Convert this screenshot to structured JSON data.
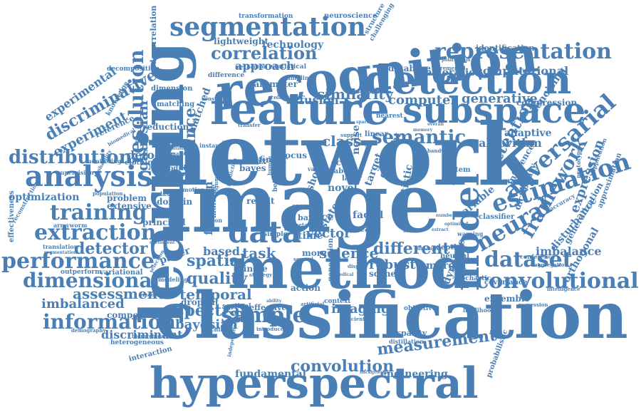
{
  "color": "#4a7fb5",
  "words": [
    {
      "id": "network",
      "text": "network"
    },
    {
      "id": "image",
      "text": "image"
    },
    {
      "id": "classification",
      "text": "classification"
    },
    {
      "id": "learning",
      "text": "learning"
    },
    {
      "id": "recognition",
      "text": "recognition"
    },
    {
      "id": "method",
      "text": "method"
    },
    {
      "id": "feature",
      "text": "feature"
    },
    {
      "id": "hyperspectral",
      "text": "hyperspectral"
    },
    {
      "id": "detection",
      "text": "detection"
    },
    {
      "id": "subspace",
      "text": "subspace"
    },
    {
      "id": "segmentation",
      "text": "segmentation"
    },
    {
      "id": "model",
      "text": "model"
    },
    {
      "id": "analysis",
      "text": "analysis"
    },
    {
      "id": "estimation",
      "text": "estimation"
    },
    {
      "id": "convolutional",
      "text": "convolutional"
    },
    {
      "id": "representation",
      "text": "representation"
    },
    {
      "id": "data",
      "text": "data"
    },
    {
      "id": "sample",
      "text": "sample"
    },
    {
      "id": "dataset",
      "text": "dataset"
    },
    {
      "id": "neural",
      "text": "neural"
    },
    {
      "id": "adversarial",
      "text": "adversarial"
    },
    {
      "id": "extraction",
      "text": "extraction"
    },
    {
      "id": "training",
      "text": "training"
    },
    {
      "id": "performance",
      "text": "performance"
    },
    {
      "id": "dimensional",
      "text": "dimensional"
    },
    {
      "id": "information",
      "text": "information"
    },
    {
      "id": "distribution",
      "text": "distribution"
    },
    {
      "id": "resolution",
      "text": "resolution"
    },
    {
      "id": "correlation",
      "text": "correlation"
    },
    {
      "id": "semantic",
      "text": "semantic"
    },
    {
      "id": "framework",
      "text": "framework"
    },
    {
      "id": "convolution",
      "text": "convolution"
    },
    {
      "id": "measurement",
      "text": "measurement"
    },
    {
      "id": "spectral",
      "text": "spectral"
    },
    {
      "id": "spatial",
      "text": "spatial"
    },
    {
      "id": "quality",
      "text": "quality"
    },
    {
      "id": "distance",
      "text": "distance"
    },
    {
      "id": "discriminative",
      "text": "discriminative"
    },
    {
      "id": "experimental",
      "text": "experimental"
    },
    {
      "id": "experiment",
      "text": "experiment"
    },
    {
      "id": "detector",
      "text": "detector"
    },
    {
      "id": "assessment",
      "text": "assessment"
    },
    {
      "id": "imbalanced",
      "text": "imbalanced"
    },
    {
      "id": "discriminant",
      "text": "discriminant"
    },
    {
      "id": "bayesian",
      "text": "bayesian"
    },
    {
      "id": "temporal",
      "text": "temporal"
    },
    {
      "id": "science",
      "text": "science"
    },
    {
      "id": "different",
      "text": "different"
    },
    {
      "id": "imaging",
      "text": "imaging"
    },
    {
      "id": "based",
      "text": "based"
    },
    {
      "id": "task",
      "text": "task"
    },
    {
      "id": "similarity",
      "text": "similarity"
    },
    {
      "id": "computer",
      "text": "computer"
    },
    {
      "id": "generative",
      "text": "generative"
    },
    {
      "id": "class",
      "text": "class"
    },
    {
      "id": "attention",
      "text": "attention"
    },
    {
      "id": "algorithm",
      "text": "algorithm"
    },
    {
      "id": "imbalance",
      "text": "imbalance"
    },
    {
      "id": "expression",
      "text": "expression"
    },
    {
      "id": "technology",
      "text": "technology"
    },
    {
      "id": "approach",
      "text": "approach"
    },
    {
      "id": "computational",
      "text": "computational"
    },
    {
      "id": "optimization",
      "text": "optimization"
    },
    {
      "id": "gaussian",
      "text": "gaussian"
    },
    {
      "id": "vector",
      "text": "vector"
    },
    {
      "id": "robust",
      "text": "robust"
    },
    {
      "id": "fusion",
      "text": "fusion"
    },
    {
      "id": "function",
      "text": "function"
    },
    {
      "id": "database",
      "text": "database"
    },
    {
      "id": "restoration",
      "text": "restoration"
    },
    {
      "id": "denoising",
      "text": "denoising"
    },
    {
      "id": "compression",
      "text": "compression"
    },
    {
      "id": "parameter",
      "text": "parameter"
    },
    {
      "id": "adaptive",
      "text": "adaptive"
    },
    {
      "id": "fundamental",
      "text": "fundamental"
    },
    {
      "id": "engineering",
      "text": "engineering"
    },
    {
      "id": "lightweight",
      "text": "lightweight"
    },
    {
      "id": "neuroscience",
      "text": "neuroscience"
    },
    {
      "id": "transformation",
      "text": "transformation"
    },
    {
      "id": "identification",
      "text": "identification"
    },
    {
      "id": "structure",
      "text": "structure"
    },
    {
      "id": "challenging",
      "text": "challenging"
    },
    {
      "id": "statistical",
      "text": "statistical"
    },
    {
      "id": "sampling",
      "text": "sampling"
    },
    {
      "id": "difference",
      "text": "difference"
    },
    {
      "id": "matched",
      "text": "matched"
    },
    {
      "id": "dimension",
      "text": "dimension"
    },
    {
      "id": "matching",
      "text": "matching"
    },
    {
      "id": "reduction",
      "text": "reduction"
    },
    {
      "id": "defocus",
      "text": "defocus"
    },
    {
      "id": "clothing",
      "text": "clothing"
    },
    {
      "id": "module",
      "text": "module"
    },
    {
      "id": "reference",
      "text": "reference"
    },
    {
      "id": "knowledge",
      "text": "knowledge"
    },
    {
      "id": "decomposition",
      "text": "decomposition"
    },
    {
      "id": "decorrelation",
      "text": "decorrelation"
    },
    {
      "id": "problem",
      "text": "problem"
    },
    {
      "id": "extensive",
      "text": "extensive"
    },
    {
      "id": "principal",
      "text": "principal"
    },
    {
      "id": "domain",
      "text": "domain"
    },
    {
      "id": "region",
      "text": "region"
    },
    {
      "id": "paper",
      "text": "paper"
    },
    {
      "id": "modeling",
      "text": "modeling"
    },
    {
      "id": "dropout",
      "text": "dropout"
    },
    {
      "id": "sentinel",
      "text": "sentinel"
    },
    {
      "id": "effective",
      "text": "effective"
    },
    {
      "id": "machine",
      "text": "machine"
    },
    {
      "id": "component",
      "text": "component"
    },
    {
      "id": "heterogeneous",
      "text": "heterogeneous"
    },
    {
      "id": "interaction",
      "text": "interaction"
    },
    {
      "id": "variational",
      "text": "variational"
    },
    {
      "id": "outperform",
      "text": "outperform"
    },
    {
      "id": "modelling",
      "text": "modelling"
    },
    {
      "id": "demography",
      "text": "demography"
    },
    {
      "id": "hierarchical",
      "text": "hierarchical"
    },
    {
      "id": "armyworm",
      "text": "armyworm"
    },
    {
      "id": "translation",
      "text": "translation"
    },
    {
      "id": "segmentation2",
      "text": "segmentation"
    },
    {
      "id": "effectiveness",
      "text": "effectiveness"
    },
    {
      "id": "reconstruction",
      "text": "reconstruction"
    },
    {
      "id": "population",
      "text": "population"
    },
    {
      "id": "supervision",
      "text": "supervision"
    },
    {
      "id": "monitoring",
      "text": "monitoring"
    },
    {
      "id": "biomedical",
      "text": "biomedical"
    },
    {
      "id": "geometric",
      "text": "geometric"
    },
    {
      "id": "automatic",
      "text": "automatic"
    },
    {
      "id": "evolution",
      "text": "evolution"
    },
    {
      "id": "motion",
      "text": "motion"
    },
    {
      "id": "classes",
      "text": "classes"
    },
    {
      "id": "selection",
      "text": "selection"
    },
    {
      "id": "probability",
      "text": "probability"
    },
    {
      "id": "coefficient",
      "text": "coefficient"
    },
    {
      "id": "matrix",
      "text": "matrix"
    },
    {
      "id": "finger",
      "text": "finger"
    },
    {
      "id": "bayes",
      "text": "bayes"
    },
    {
      "id": "focus",
      "text": "focus"
    },
    {
      "id": "result",
      "text": "result"
    },
    {
      "id": "novel",
      "text": "novel"
    },
    {
      "id": "scale",
      "text": "scale"
    },
    {
      "id": "label",
      "text": "label"
    },
    {
      "id": "layer",
      "text": "layer"
    },
    {
      "id": "face",
      "text": "face"
    },
    {
      "id": "facial",
      "text": "facial"
    },
    {
      "id": "time",
      "text": "time"
    },
    {
      "id": "local",
      "text": "local"
    },
    {
      "id": "noise",
      "text": "noise"
    },
    {
      "id": "target",
      "text": "target"
    },
    {
      "id": "gradient",
      "text": "gradient"
    },
    {
      "id": "statistic",
      "text": "statistic"
    },
    {
      "id": "depth",
      "text": "depth"
    },
    {
      "id": "neutral",
      "text": "neutral"
    },
    {
      "id": "margin",
      "text": "margin"
    },
    {
      "id": "dynamic",
      "text": "dynamic"
    },
    {
      "id": "variable",
      "text": "variable"
    },
    {
      "id": "classifier",
      "text": "classifier"
    },
    {
      "id": "dictionary",
      "text": "dictionary"
    },
    {
      "id": "inference",
      "text": "inference"
    },
    {
      "id": "branch",
      "text": "branch"
    },
    {
      "id": "system",
      "text": "system"
    },
    {
      "id": "nearest",
      "text": "nearest"
    },
    {
      "id": "linear",
      "text": "linear"
    },
    {
      "id": "support",
      "text": "support"
    },
    {
      "id": "scene",
      "text": "scene"
    },
    {
      "id": "more",
      "text": "more"
    },
    {
      "id": "single",
      "text": "single"
    },
    {
      "id": "shot",
      "text": "shot"
    },
    {
      "id": "state",
      "text": "state"
    },
    {
      "id": "generation",
      "text": "generation"
    },
    {
      "id": "action",
      "text": "action"
    },
    {
      "id": "context",
      "text": "context"
    },
    {
      "id": "artificial",
      "text": "artificial"
    },
    {
      "id": "objective",
      "text": "objective"
    },
    {
      "id": "likelihood",
      "text": "likelihood"
    },
    {
      "id": "regression",
      "text": "regression"
    },
    {
      "id": "ensemble",
      "text": "ensemble"
    },
    {
      "id": "stochastic",
      "text": "stochastic"
    },
    {
      "id": "covariance",
      "text": "covariance"
    },
    {
      "id": "conference",
      "text": "conference"
    },
    {
      "id": "aggregation",
      "text": "aggregation"
    },
    {
      "id": "orthogonal",
      "text": "orthogonal"
    },
    {
      "id": "generalization",
      "text": "generalization"
    },
    {
      "id": "disturbance",
      "text": "disturbance"
    },
    {
      "id": "accuracy",
      "text": "accuracy"
    },
    {
      "id": "approximation",
      "text": "approximation"
    },
    {
      "id": "prototype",
      "text": "prototype"
    },
    {
      "id": "application",
      "text": "application"
    },
    {
      "id": "graph",
      "text": "graph"
    },
    {
      "id": "probabilistic",
      "text": "probabilistic"
    },
    {
      "id": "disparity",
      "text": "disparity"
    },
    {
      "id": "distillation",
      "text": "distillation"
    },
    {
      "id": "introduce",
      "text": "introduce"
    },
    {
      "id": "independent",
      "text": "independent"
    },
    {
      "id": "efficient",
      "text": "efficient"
    },
    {
      "id": "ability",
      "text": "ability"
    },
    {
      "id": "alignment",
      "text": "alignment"
    },
    {
      "id": "prediction",
      "text": "prediction"
    },
    {
      "id": "better",
      "text": "better"
    },
    {
      "id": "multiple",
      "text": "multiple"
    },
    {
      "id": "simple",
      "text": "simple"
    },
    {
      "id": "mechanism",
      "text": "mechanism"
    },
    {
      "id": "constrain",
      "text": "constrain"
    },
    {
      "id": "collection",
      "text": "collection"
    },
    {
      "id": "bandwidth",
      "text": "bandwidth"
    },
    {
      "id": "intelligence",
      "text": "intelligence"
    },
    {
      "id": "warping",
      "text": "warping"
    },
    {
      "id": "incremental",
      "text": "incremental"
    },
    {
      "id": "polarization",
      "text": "polarization"
    },
    {
      "id": "crop",
      "text": "crop"
    },
    {
      "id": "band",
      "text": "band"
    },
    {
      "id": "score",
      "text": "score"
    },
    {
      "id": "meta",
      "text": "meta"
    },
    {
      "id": "level",
      "text": "level"
    },
    {
      "id": "several",
      "text": "several"
    },
    {
      "id": "display",
      "text": "display"
    },
    {
      "id": "medical",
      "text": "medical"
    },
    {
      "id": "strategy",
      "text": "strategy"
    },
    {
      "id": "transfer",
      "text": "transfer"
    },
    {
      "id": "pattern",
      "text": "pattern"
    },
    {
      "id": "instance",
      "text": "instance"
    },
    {
      "id": "human",
      "text": "human"
    },
    {
      "id": "various",
      "text": "various"
    },
    {
      "id": "distortion",
      "text": "distortion"
    },
    {
      "id": "background",
      "text": "background"
    },
    {
      "id": "descriptor",
      "text": "descriptor"
    },
    {
      "id": "achieve",
      "text": "achieve"
    },
    {
      "id": "optimized",
      "text": "optimized"
    },
    {
      "id": "extract",
      "text": "extract"
    },
    {
      "id": "sparse",
      "text": "sparse"
    },
    {
      "id": "deep",
      "text": "deep"
    },
    {
      "id": "memory",
      "text": "memory"
    },
    {
      "id": "number",
      "text": "number"
    },
    {
      "id": "overall",
      "text": "overall"
    },
    {
      "id": "existing",
      "text": "existing"
    }
  ]
}
